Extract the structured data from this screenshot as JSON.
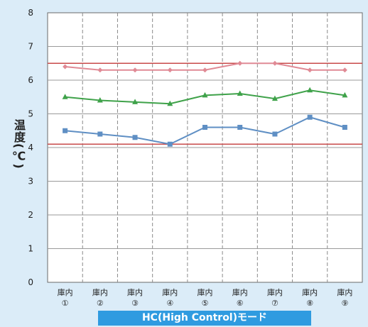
{
  "chart_data": {
    "type": "line",
    "ylabel": "温度(℃)",
    "ylim": [
      0,
      8
    ],
    "yticks": [
      "0",
      "1",
      "2",
      "3",
      "4",
      "5",
      "6",
      "7",
      "8"
    ],
    "categories": [
      {
        "top": "庫内",
        "bottom": "①"
      },
      {
        "top": "庫内",
        "bottom": "②"
      },
      {
        "top": "庫内",
        "bottom": "③"
      },
      {
        "top": "庫内",
        "bottom": "④"
      },
      {
        "top": "庫内",
        "bottom": "⑤"
      },
      {
        "top": "庫内",
        "bottom": "⑥"
      },
      {
        "top": "庫内",
        "bottom": "⑦"
      },
      {
        "top": "庫内",
        "bottom": "⑧"
      },
      {
        "top": "庫内",
        "bottom": "⑨"
      }
    ],
    "series": [
      {
        "values": [
          6.4,
          6.3,
          6.3,
          6.3,
          6.3,
          6.5,
          6.5,
          6.3,
          6.3
        ],
        "color": "#e08a95",
        "marker": "diamond"
      },
      {
        "values": [
          5.5,
          5.4,
          5.35,
          5.3,
          5.55,
          5.6,
          5.45,
          5.7,
          5.55
        ],
        "color": "#3fa24a",
        "marker": "triangle"
      },
      {
        "values": [
          4.5,
          4.4,
          4.3,
          4.1,
          4.6,
          4.6,
          4.4,
          4.9,
          4.6
        ],
        "color": "#5f8fc4",
        "marker": "square"
      }
    ],
    "reference_lines": [
      {
        "y": 6.5,
        "color": "#c84a4a"
      },
      {
        "y": 4.1,
        "color": "#c84a4a"
      }
    ],
    "grid": "vertical-dashed",
    "background": "#ffffff",
    "page_background": "#dbecf8"
  },
  "mode_banner": "HC(High Control)モード"
}
